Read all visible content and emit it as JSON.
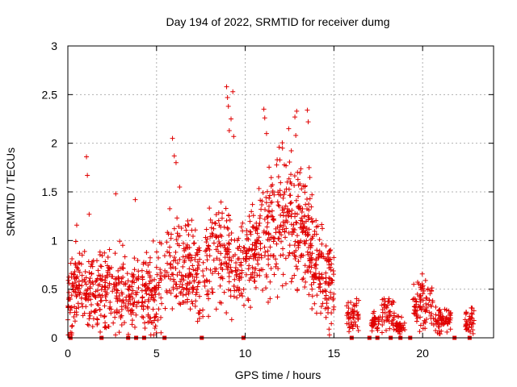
{
  "chart_data": {
    "type": "scatter",
    "title": "Day 194 of 2022, SRMTID for receiver dumg",
    "xlabel": "GPS time / hours",
    "ylabel": "SRMTID / TECUs",
    "xlim": [
      0,
      24
    ],
    "ylim": [
      0,
      3
    ],
    "xticks": [
      0,
      5,
      10,
      15,
      20
    ],
    "yticks": [
      0,
      0.5,
      1,
      1.5,
      2,
      2.5,
      3
    ],
    "xtick_labels": [
      "0",
      "5",
      "10",
      "15",
      "20"
    ],
    "ytick_labels": [
      "0",
      "0.5",
      "1",
      "1.5",
      "2",
      "2.5",
      "3"
    ],
    "grid": true,
    "marker": "plus",
    "series": [
      {
        "name": "SRMTID",
        "color": "#e00000",
        "envelope": {
          "x": [
            0,
            0.5,
            1,
            1.5,
            2,
            2.5,
            3,
            3.5,
            4,
            4.5,
            5,
            5.5,
            6,
            6.5,
            7,
            7.5,
            8,
            8.5,
            9,
            9.5,
            10,
            10.5,
            11,
            11.5,
            12,
            12.5,
            13,
            13.5,
            14,
            14.5,
            15
          ],
          "y": [
            0.3,
            0.55,
            0.5,
            0.45,
            0.5,
            0.55,
            0.5,
            0.45,
            0.45,
            0.5,
            0.45,
            0.65,
            0.75,
            0.7,
            0.75,
            0.6,
            0.8,
            0.9,
            0.85,
            0.75,
            0.75,
            0.95,
            1.1,
            1.15,
            1.2,
            1.3,
            1.15,
            1.0,
            0.8,
            0.65,
            0.5
          ]
        },
        "late_clusters": [
          {
            "x": [
              15.7,
              16.4
            ],
            "y": 0.22
          },
          {
            "x": [
              17.1,
              17.6
            ],
            "y": 0.15
          },
          {
            "x": [
              17.7,
              18.4
            ],
            "y": 0.25
          },
          {
            "x": [
              18.5,
              19.0
            ],
            "y": 0.12
          },
          {
            "x": [
              19.4,
              20.6
            ],
            "y": 0.35
          },
          {
            "x": [
              20.6,
              21.6
            ],
            "y": 0.18
          },
          {
            "x": [
              22.4,
              22.9
            ],
            "y": 0.18
          }
        ],
        "outliers": [
          {
            "x": 1.05,
            "y": 1.86
          },
          {
            "x": 1.1,
            "y": 1.67
          },
          {
            "x": 1.2,
            "y": 1.27
          },
          {
            "x": 2.7,
            "y": 1.48
          },
          {
            "x": 3.8,
            "y": 1.42
          },
          {
            "x": 5.9,
            "y": 2.05
          },
          {
            "x": 6.0,
            "y": 1.87
          },
          {
            "x": 6.1,
            "y": 1.8
          },
          {
            "x": 6.3,
            "y": 1.55
          },
          {
            "x": 8.95,
            "y": 2.58
          },
          {
            "x": 9.0,
            "y": 2.47
          },
          {
            "x": 9.05,
            "y": 2.38
          },
          {
            "x": 9.3,
            "y": 2.53
          },
          {
            "x": 9.2,
            "y": 2.25
          },
          {
            "x": 9.1,
            "y": 2.13
          },
          {
            "x": 9.35,
            "y": 2.07
          },
          {
            "x": 11.05,
            "y": 2.35
          },
          {
            "x": 11.1,
            "y": 2.26
          },
          {
            "x": 11.2,
            "y": 2.1
          },
          {
            "x": 12.45,
            "y": 2.15
          },
          {
            "x": 12.8,
            "y": 2.27
          },
          {
            "x": 12.9,
            "y": 2.33
          },
          {
            "x": 12.85,
            "y": 2.08
          },
          {
            "x": 13.5,
            "y": 2.34
          },
          {
            "x": 13.55,
            "y": 2.22
          },
          {
            "x": 12.1,
            "y": 1.95
          },
          {
            "x": 11.8,
            "y": 1.83
          },
          {
            "x": 13.6,
            "y": 1.75
          }
        ],
        "zero_markers": [
          0.15,
          1.9,
          3.4,
          3.85,
          4.3,
          5.45,
          7.55,
          9.9,
          16.0,
          17.0,
          17.45,
          18.2,
          18.75,
          19.3,
          21.8,
          22.65
        ]
      }
    ]
  }
}
